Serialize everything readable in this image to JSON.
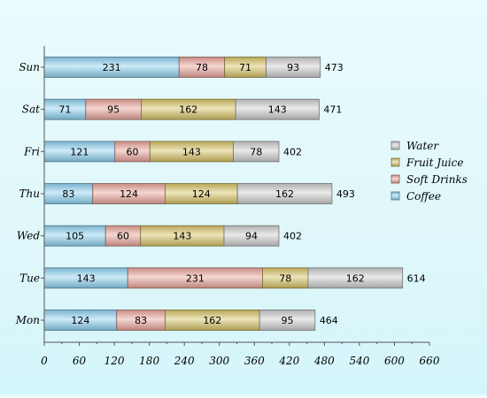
{
  "chart_data": {
    "type": "bar",
    "orientation": "horizontal",
    "stacked": true,
    "categories": [
      "Mon",
      "Tue",
      "Wed",
      "Thu",
      "Fri",
      "Sat",
      "Sun"
    ],
    "series": [
      {
        "name": "Coffee",
        "values": [
          124,
          143,
          105,
          83,
          121,
          71,
          231
        ],
        "color": "#8fd3f2"
      },
      {
        "name": "Soft Drinks",
        "values": [
          83,
          231,
          60,
          124,
          60,
          95,
          78
        ],
        "color": "#eba59b"
      },
      {
        "name": "Fruit Juice",
        "values": [
          162,
          78,
          143,
          124,
          143,
          162,
          71
        ],
        "color": "#d8c466"
      },
      {
        "name": "Water",
        "values": [
          95,
          162,
          94,
          162,
          78,
          143,
          93
        ],
        "color": "#cfcfcf"
      }
    ],
    "totals": [
      464,
      614,
      402,
      493,
      402,
      471,
      473
    ],
    "xlim": [
      0,
      660
    ],
    "xticks": [
      0,
      60,
      120,
      180,
      240,
      300,
      360,
      420,
      480,
      540,
      600,
      660
    ],
    "legend_position": "right",
    "grid": false
  }
}
